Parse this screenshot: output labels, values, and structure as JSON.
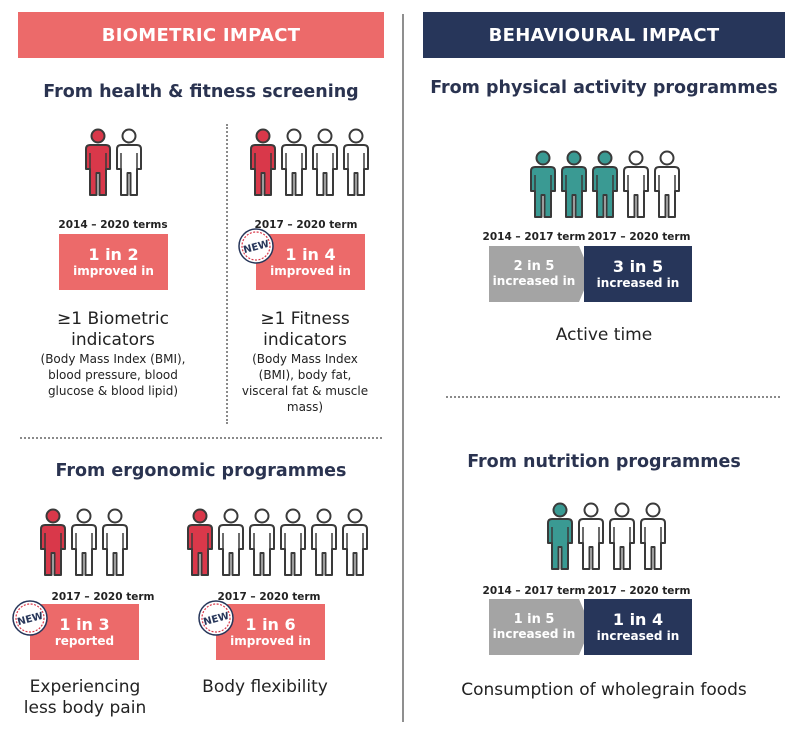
{
  "colors": {
    "red": "#ec6a6a",
    "navy": "#27365a",
    "teal": "#3a9a93",
    "grey": "#a4a4a4",
    "person_red": "#d9384a"
  },
  "biometric": {
    "header": "BIOMETRIC IMPACT",
    "screening": {
      "title": "From health & fitness screening",
      "biometric": {
        "people": {
          "highlighted": 1,
          "total": 2,
          "icon": "person-icon"
        },
        "term": "2014 – 2020 terms",
        "stat": "1 in 2",
        "stat_label": "improved in",
        "caption_line1": "≥1 Biometric",
        "caption_line2": "indicators",
        "sub_line1": "(Body Mass Index (BMI),",
        "sub_line2": "blood pressure, blood",
        "sub_line3": "glucose & blood lipid)"
      },
      "fitness": {
        "people": {
          "highlighted": 1,
          "total": 4,
          "icon": "person-icon"
        },
        "term": "2017 – 2020 term",
        "badge": "NEW",
        "stat": "1 in 4",
        "stat_label": "improved in",
        "caption_line1": "≥1 Fitness",
        "caption_line2": "indicators",
        "sub_line1": "(Body Mass Index",
        "sub_line2": "(BMI), body fat,",
        "sub_line3": "visceral fat & muscle",
        "sub_line4": "mass)"
      }
    },
    "ergonomic": {
      "title": "From ergonomic programmes",
      "pain": {
        "people": {
          "highlighted": 1,
          "total": 3,
          "icon": "person-icon"
        },
        "term": "2017 – 2020 term",
        "badge": "NEW",
        "stat": "1 in 3",
        "stat_label": "reported",
        "caption_line1": "Experiencing",
        "caption_line2": "less body pain"
      },
      "flexibility": {
        "people": {
          "highlighted": 1,
          "total": 6,
          "icon": "person-icon"
        },
        "term": "2017 – 2020 term",
        "badge": "NEW",
        "stat": "1 in 6",
        "stat_label": "improved in",
        "caption_line1": "Body flexibility"
      }
    }
  },
  "behavioural": {
    "header": "BEHAVIOURAL IMPACT",
    "activity": {
      "title": "From physical activity programmes",
      "people": {
        "highlighted": 3,
        "total": 5,
        "icon": "person-icon"
      },
      "prev_term": "2014 – 2017 term",
      "prev_stat": "2 in 5",
      "prev_label": "increased in",
      "curr_term": "2017 – 2020 term",
      "curr_stat": "3 in 5",
      "curr_label": "increased in",
      "caption": "Active time"
    },
    "nutrition": {
      "title": "From nutrition programmes",
      "people": {
        "highlighted": 1,
        "total": 4,
        "icon": "person-icon"
      },
      "prev_term": "2014 – 2017 term",
      "prev_stat": "1 in 5",
      "prev_label": "increased in",
      "curr_term": "2017 – 2020 term",
      "curr_stat": "1 in 4",
      "curr_label": "increased in",
      "caption": "Consumption of wholegrain foods"
    }
  }
}
